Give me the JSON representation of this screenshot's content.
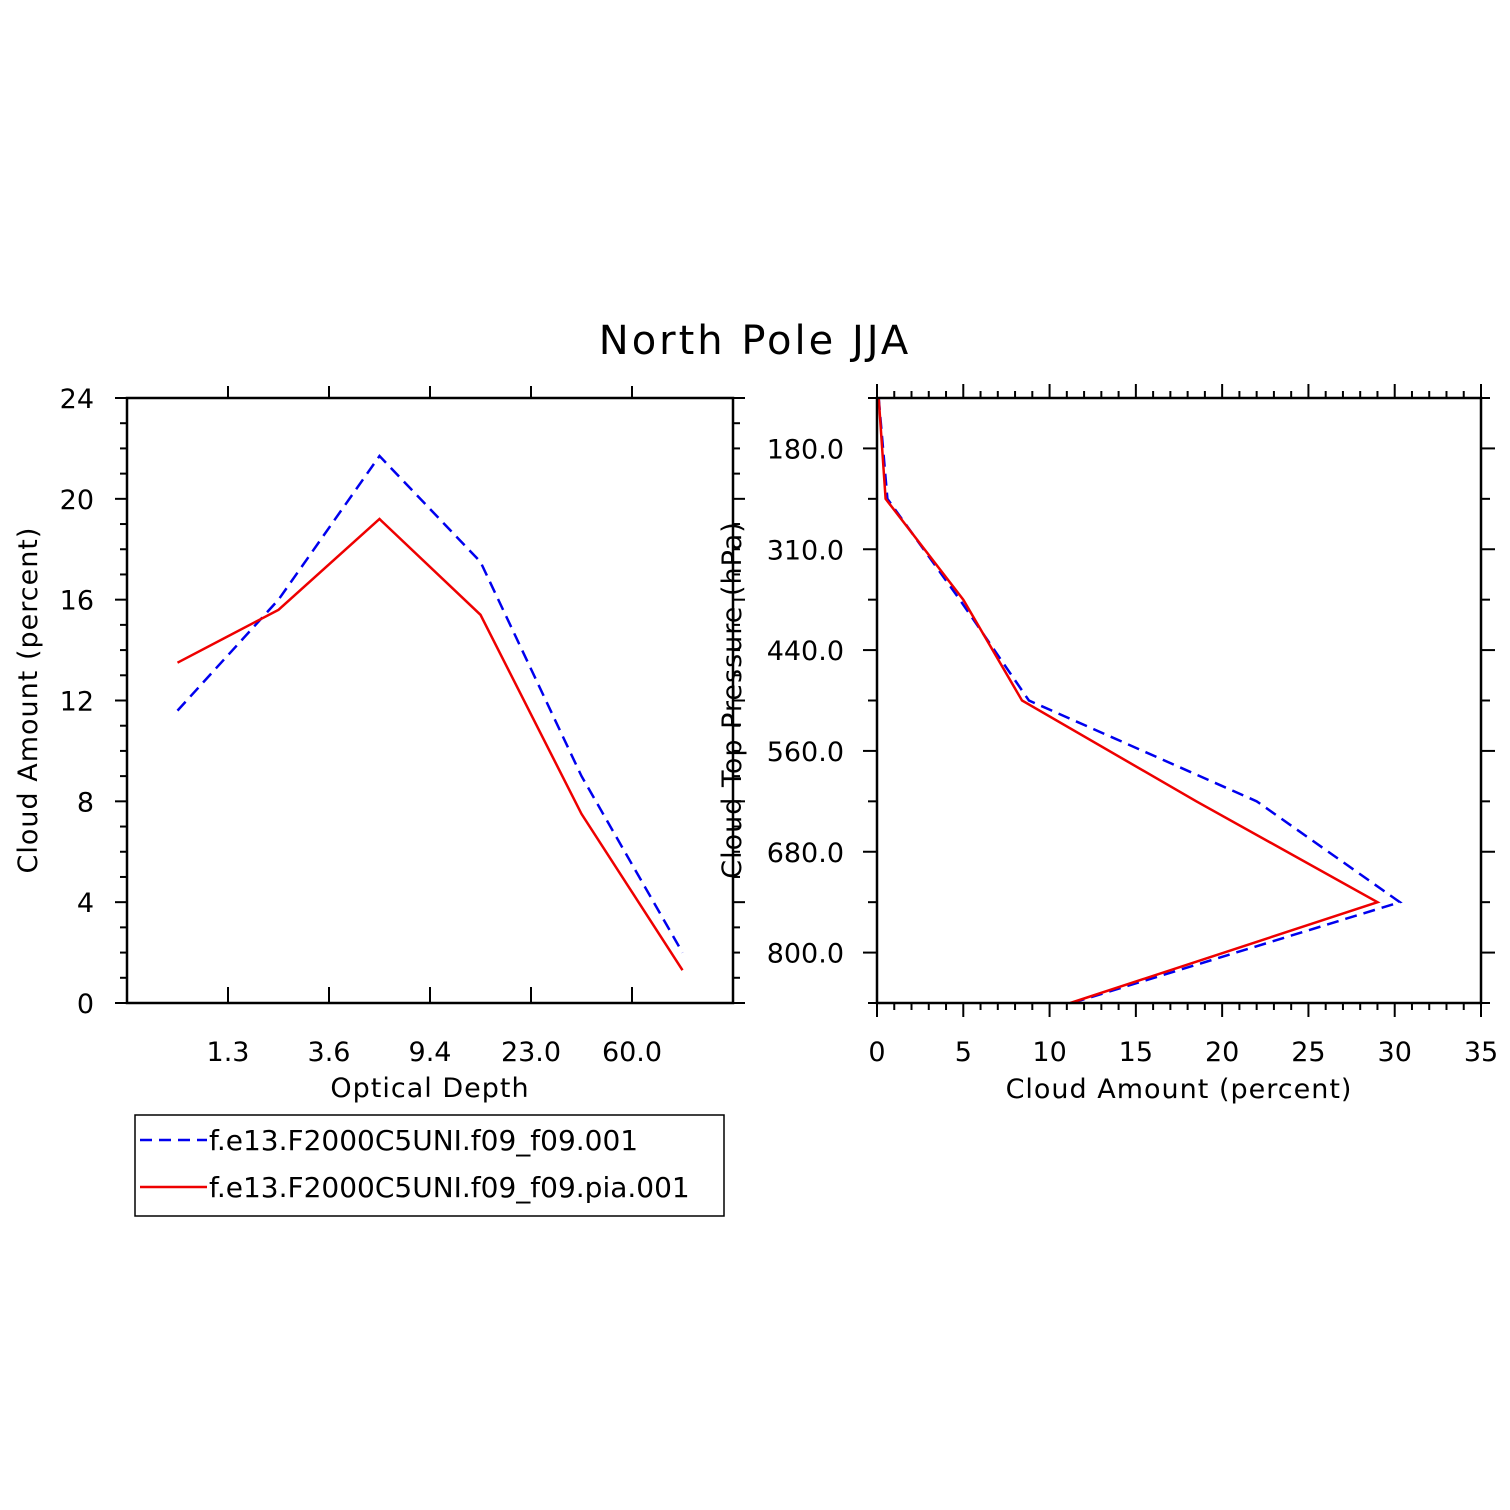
{
  "title": "North Pole JJA",
  "colors": {
    "series_1": "#0000ee",
    "series_2": "#ee0000",
    "axis": "#000000"
  },
  "legend": {
    "placement": "below-left",
    "entries": [
      {
        "label": "f.e13.F2000C5UNI.f09_f09.001",
        "color": "#0000ee",
        "style": "dashed"
      },
      {
        "label": "f.e13.F2000C5UNI.f09_f09.pia.001",
        "color": "#ee0000",
        "style": "solid"
      }
    ]
  },
  "chart_data": [
    {
      "type": "line",
      "xlabel": "Optical Depth",
      "ylabel": "Cloud Amount (percent)",
      "x_tick_labels": [
        "1.3",
        "3.6",
        "9.4",
        "23.0",
        "60.0"
      ],
      "y_ticks": [
        0,
        4,
        8,
        12,
        16,
        20,
        24
      ],
      "ylim": [
        0,
        24
      ],
      "grid": false,
      "x_bins": [
        "0.3",
        "1.3",
        "3.6",
        "9.4",
        "23.0",
        "60.0",
        "380.0"
      ],
      "series": [
        {
          "name": "f.e13.F2000C5UNI.f09_f09.001",
          "values": [
            11.6,
            16.0,
            21.7,
            17.5,
            9.0,
            2.0
          ]
        },
        {
          "name": "f.e13.F2000C5UNI.f09_f09.pia.001",
          "values": [
            13.5,
            15.6,
            19.2,
            15.4,
            7.5,
            1.3
          ]
        }
      ]
    },
    {
      "type": "line",
      "xlabel": "Cloud Amount (percent)",
      "ylabel": "Cloud Top Pressure (hPa)",
      "x_ticks": [
        0,
        5,
        10,
        15,
        20,
        25,
        30,
        35
      ],
      "xlim": [
        0,
        35
      ],
      "y_tick_labels": [
        "180.0",
        "310.0",
        "440.0",
        "560.0",
        "680.0",
        "800.0"
      ],
      "grid": false,
      "pressure_levels": [
        "90.0",
        "180.0",
        "245.0",
        "310.0",
        "375.0",
        "440.0",
        "500.0",
        "560.0",
        "620.0",
        "680.0",
        "740.0",
        "800.0",
        "875.0"
      ],
      "series": [
        {
          "name": "f.e13.F2000C5UNI.f09_f09.001",
          "pressure": [
            "90.0",
            "245.0",
            "375.0",
            "500.0",
            "620.0",
            "740.0",
            "875.0"
          ],
          "values": [
            0.1,
            0.6,
            4.8,
            8.8,
            22.0,
            30.3,
            11.3
          ]
        },
        {
          "name": "f.e13.F2000C5UNI.f09_f09.pia.001",
          "pressure": [
            "90.0",
            "245.0",
            "375.0",
            "500.0",
            "620.0",
            "740.0",
            "875.0"
          ],
          "values": [
            0.1,
            0.5,
            5.0,
            8.4,
            18.5,
            29.0,
            11.2
          ]
        }
      ]
    }
  ]
}
